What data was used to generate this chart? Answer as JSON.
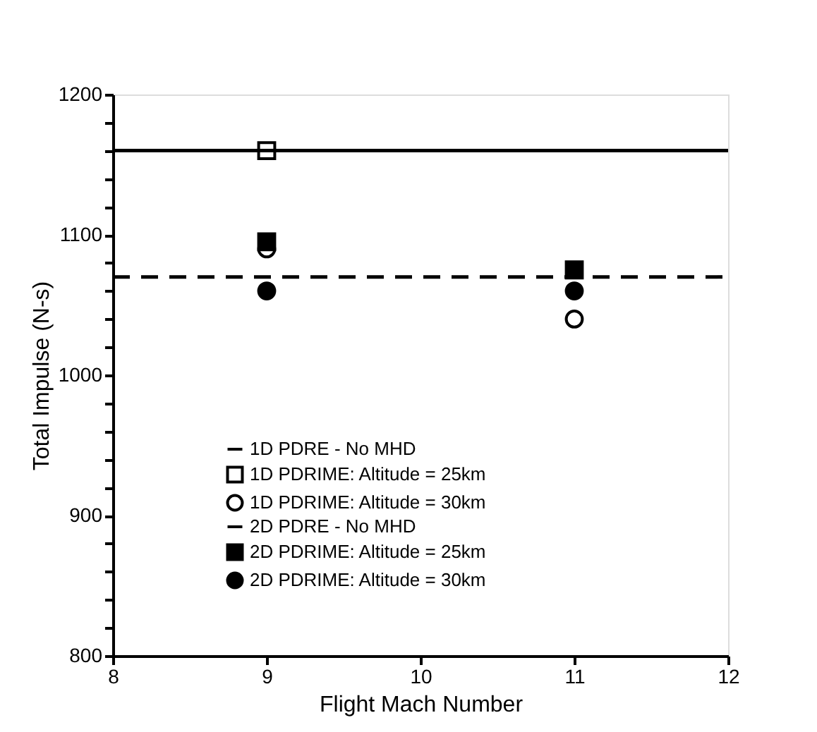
{
  "chart_data": {
    "type": "scatter",
    "xlabel": "Flight Mach Number",
    "ylabel": "Total Impulse (N-s)",
    "xlim": [
      8,
      12
    ],
    "xticks": [
      8,
      9,
      10,
      11,
      12
    ],
    "ylim": [
      800,
      1200
    ],
    "yticks": [
      800,
      {
        "value": 820,
        "label": null
      },
      {
        "value": 840,
        "label": null
      },
      {
        "value": 860,
        "label": null
      },
      {
        "value": 880,
        "label": null
      },
      900,
      {
        "value": 920,
        "label": null
      },
      {
        "value": 940,
        "label": null
      },
      {
        "value": 960,
        "label": null
      },
      {
        "value": 980,
        "label": null
      },
      1000,
      {
        "value": 1020,
        "label": null
      },
      {
        "value": 1040,
        "label": null
      },
      {
        "value": 1060,
        "label": null
      },
      {
        "value": 1080,
        "label": null
      },
      1100,
      {
        "value": 1120,
        "label": null
      },
      {
        "value": 1140,
        "label": null
      },
      {
        "value": 1160,
        "label": null
      },
      {
        "value": 1180,
        "label": null
      },
      1200
    ],
    "grid": false,
    "legend": "bottom",
    "series": [
      {
        "name": "1D PDRE - No MHD",
        "type": "line",
        "line_style": "dashed",
        "color": "#000000",
        "x": [
          8,
          12
        ],
        "values": [
          1070,
          1070
        ]
      },
      {
        "name": "1D PDRIME:  Altitude = 25km",
        "marker": "square",
        "color": "#ffffff",
        "x": [
          9
        ],
        "values": [
          1160
        ]
      },
      {
        "name": "1D PDRIME:  Altitude = 30km",
        "marker": "circle",
        "color": "#ffffff",
        "x": [
          9,
          11
        ],
        "values": [
          1090,
          1040
        ]
      },
      {
        "name": "2D PDRE - No MHD",
        "type": "line",
        "line_style": "solid",
        "color": "#000000",
        "x": [
          8,
          12
        ],
        "values": [
          1160,
          1160
        ]
      },
      {
        "name": "2D PDRIME:  Altitude = 25km",
        "marker": "square",
        "color": "#000000",
        "x": [
          9,
          11
        ],
        "values": [
          1095,
          1075
        ]
      },
      {
        "name": "2D PDRIME:  Altitude = 30km",
        "marker": "circle",
        "color": "#000000",
        "x": [
          9,
          11
        ],
        "values": [
          1060,
          1060
        ]
      }
    ]
  }
}
